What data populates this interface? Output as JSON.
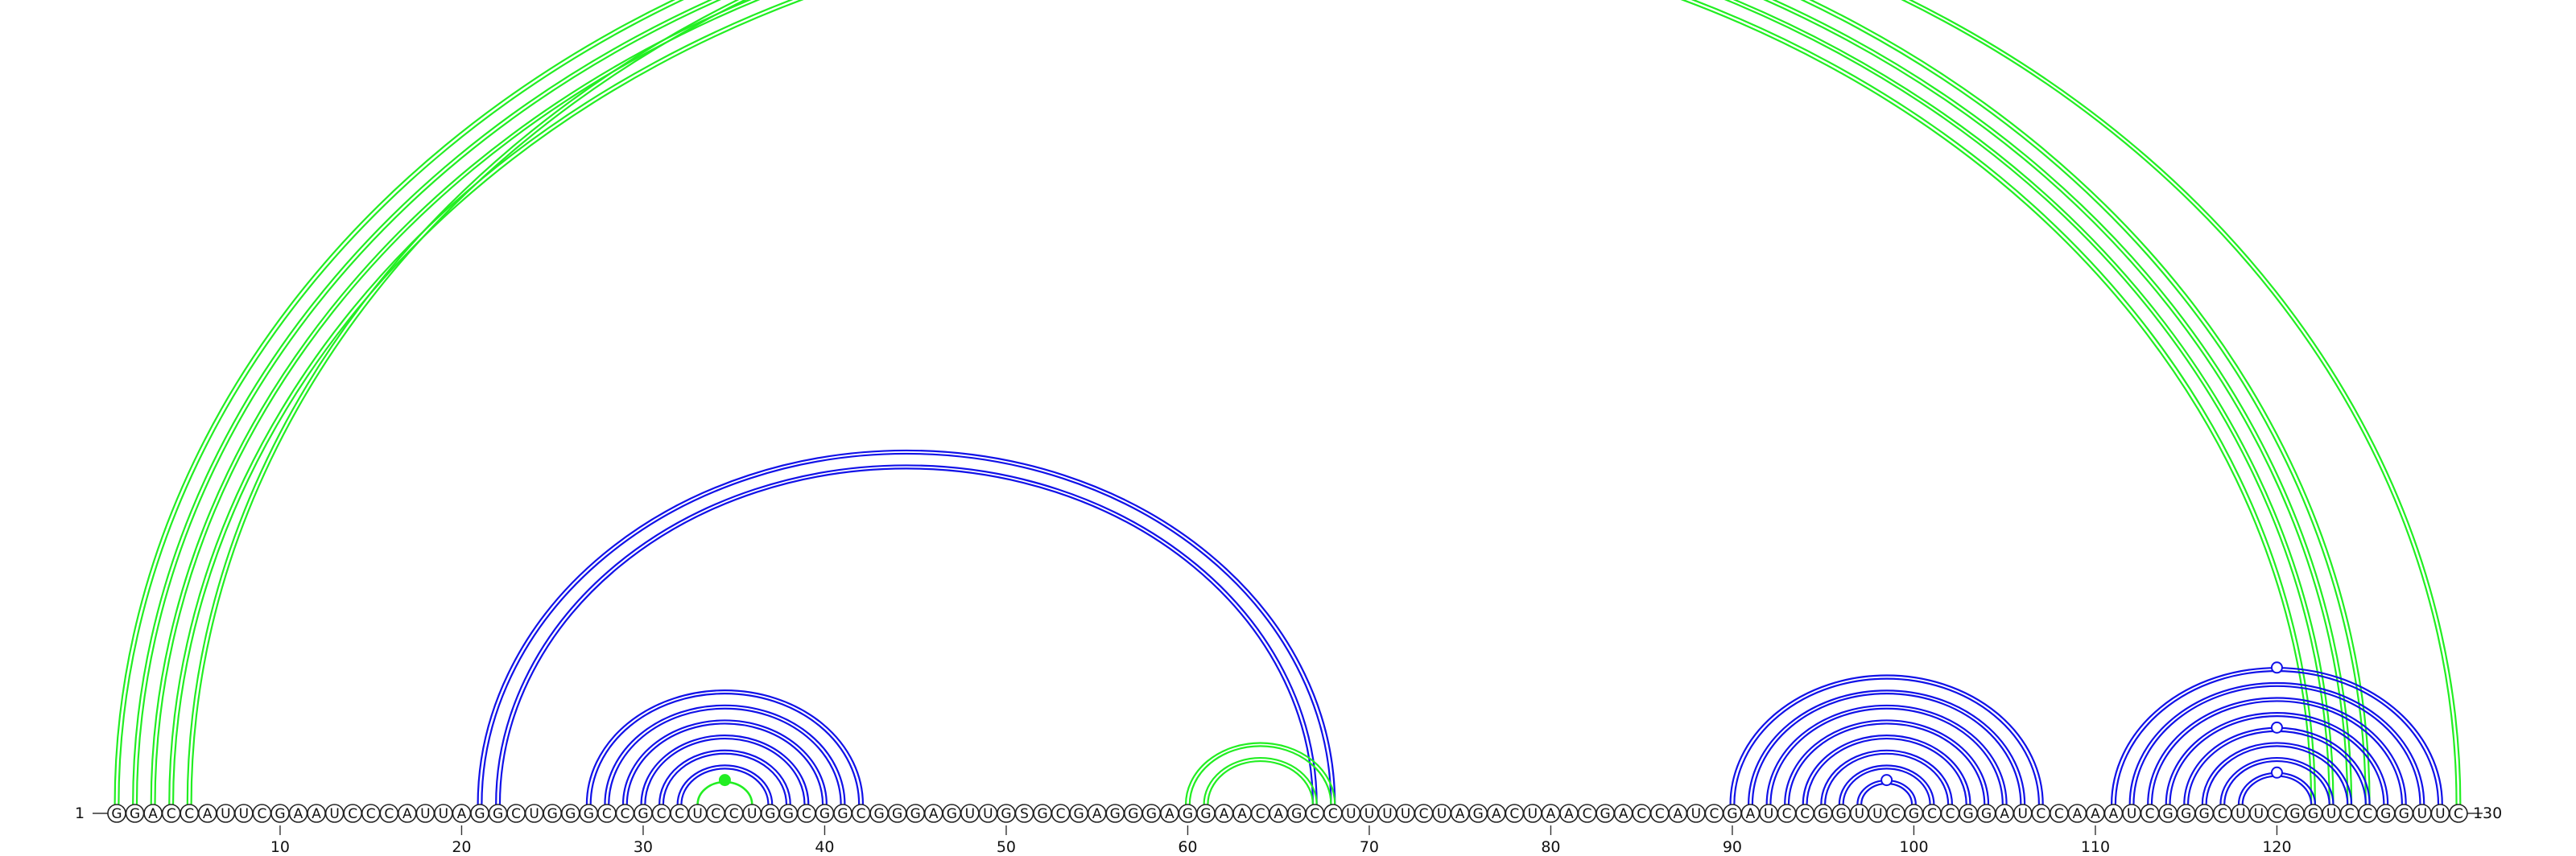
{
  "sequence": "GGACCAUUCGAAUCCCAUUAGGCUGGGCCGCCUCCUGGCGGCGGGAGUUGSGCGAGGGAGGAACAGCCUUUUCUAGACUAACGACCAUCGAUCCGGUUCGCCGGAUCCAAAUCGGGCUUCGGUCCGGUUC",
  "start_label": "1",
  "end_label": "130",
  "tick_labels": [
    "10",
    "20",
    "30",
    "40",
    "50",
    "60",
    "70",
    "80",
    "90",
    "100",
    "110",
    "120"
  ],
  "colors": {
    "blue": "#1111e8",
    "green": "#22ee22"
  },
  "arcs": [
    {
      "i": 1,
      "j": 125,
      "color": "green",
      "double": true
    },
    {
      "i": 2,
      "j": 124,
      "color": "green",
      "double": true
    },
    {
      "i": 3,
      "j": 123,
      "color": "green",
      "double": true
    },
    {
      "i": 4,
      "j": 122,
      "color": "green",
      "double": true
    },
    {
      "i": 5,
      "j": 130,
      "color": "green",
      "double": true
    },
    {
      "i": 21,
      "j": 68,
      "color": "blue",
      "double": true
    },
    {
      "i": 22,
      "j": 67,
      "color": "blue",
      "double": true
    },
    {
      "i": 27,
      "j": 42,
      "color": "blue",
      "double": true
    },
    {
      "i": 28,
      "j": 41,
      "color": "blue",
      "double": true
    },
    {
      "i": 29,
      "j": 40,
      "color": "blue",
      "double": true
    },
    {
      "i": 30,
      "j": 39,
      "color": "blue",
      "double": true
    },
    {
      "i": 31,
      "j": 38,
      "color": "blue",
      "double": true
    },
    {
      "i": 32,
      "j": 37,
      "color": "blue",
      "double": true
    },
    {
      "i": 33,
      "j": 36,
      "color": "green",
      "double": false
    },
    {
      "i": 60,
      "j": 68,
      "color": "green",
      "double": true
    },
    {
      "i": 61,
      "j": 67,
      "color": "green",
      "double": true
    },
    {
      "i": 90,
      "j": 107,
      "color": "blue",
      "double": true
    },
    {
      "i": 91,
      "j": 106,
      "color": "blue",
      "double": true
    },
    {
      "i": 92,
      "j": 105,
      "color": "blue",
      "double": true
    },
    {
      "i": 93,
      "j": 104,
      "color": "blue",
      "double": true
    },
    {
      "i": 94,
      "j": 103,
      "color": "blue",
      "double": true
    },
    {
      "i": 95,
      "j": 102,
      "color": "blue",
      "double": true
    },
    {
      "i": 96,
      "j": 101,
      "color": "blue",
      "double": true
    },
    {
      "i": 97,
      "j": 100,
      "color": "blue",
      "double": true
    },
    {
      "i": 111,
      "j": 129,
      "color": "blue",
      "double": true
    },
    {
      "i": 112,
      "j": 128,
      "color": "blue",
      "double": true
    },
    {
      "i": 113,
      "j": 127,
      "color": "blue",
      "double": true
    },
    {
      "i": 114,
      "j": 126,
      "color": "blue",
      "double": true
    },
    {
      "i": 115,
      "j": 125,
      "color": "blue",
      "double": true
    },
    {
      "i": 116,
      "j": 124,
      "color": "blue",
      "double": true
    },
    {
      "i": 117,
      "j": 123,
      "color": "blue",
      "double": true
    },
    {
      "i": 118,
      "j": 122,
      "color": "blue",
      "double": true
    }
  ],
  "markers": [
    {
      "pos": 66.0,
      "arc": "5-130",
      "color": "green",
      "filled": false
    },
    {
      "pos": 34.5,
      "arc": "33-36",
      "color": "green",
      "filled": true
    },
    {
      "pos": 98.5,
      "arc": "97-100",
      "color": "blue",
      "filled": false
    },
    {
      "pos": 120.0,
      "arc": "111-129",
      "color": "blue",
      "filled": false
    },
    {
      "pos": 120.0,
      "arc": "115-125",
      "color": "blue",
      "filled": false
    },
    {
      "pos": 120.0,
      "arc": "118-122",
      "color": "blue",
      "filled": false
    }
  ]
}
